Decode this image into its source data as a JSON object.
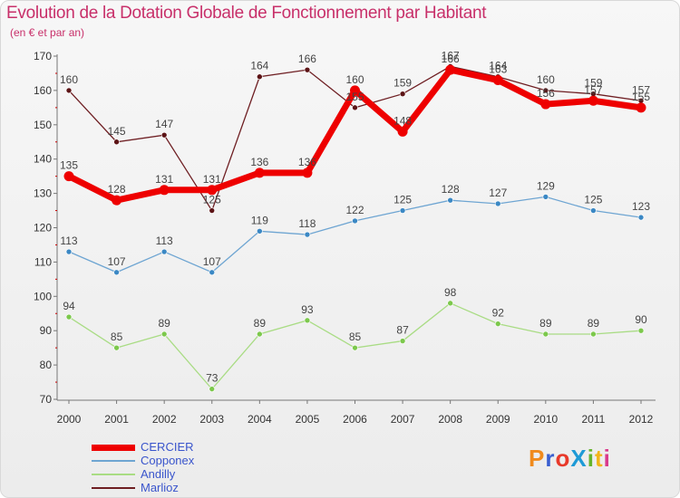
{
  "header": {
    "title": "Evolution de la Dotation Globale de Fonctionnement par Habitant",
    "subtitle": "(en € et par an)"
  },
  "logo": {
    "text": "ProXiti"
  },
  "colors": {
    "title": "#c8306a",
    "legend_text": "#3a55cc"
  },
  "chart_data": {
    "type": "line",
    "title": "Evolution de la Dotation Globale de Fonctionnement par Habitant",
    "subtitle": "(en € et par an)",
    "x": [
      "2000",
      "2001",
      "2002",
      "2003",
      "2004",
      "2005",
      "2006",
      "2007",
      "2008",
      "2009",
      "2010",
      "2011",
      "2012"
    ],
    "ylim": [
      70,
      170
    ],
    "yticks": [
      "70",
      "80",
      "90",
      "100",
      "110",
      "120",
      "130",
      "140",
      "150",
      "160",
      "170"
    ],
    "xlabel": "",
    "ylabel": "",
    "grid": false,
    "legend_position": "bottom-left",
    "series": [
      {
        "name": "Marlioz",
        "color": "#6e1e22",
        "marker": "#5c1416",
        "width": 1.3,
        "values": [
          160,
          145,
          147,
          125,
          164,
          166,
          155,
          159,
          167,
          164,
          160,
          159,
          157
        ],
        "labels": [
          "160",
          "145",
          "147",
          "125",
          "164",
          "166",
          "155",
          "159",
          "167",
          "164",
          "160",
          "159",
          "157"
        ]
      },
      {
        "name": "Copponex",
        "color": "#6ea5d2",
        "marker": "#3b88c4",
        "width": 1.3,
        "values": [
          113,
          107,
          113,
          107,
          119,
          118,
          122,
          125,
          128,
          127,
          129,
          125,
          123
        ],
        "labels": [
          "113",
          "107",
          "113",
          "107",
          "119",
          "118",
          "122",
          "125",
          "128",
          "127",
          "129",
          "125",
          "123"
        ]
      },
      {
        "name": "Andilly",
        "color": "#a9dc84",
        "marker": "#7cc84c",
        "width": 1.3,
        "values": [
          94,
          85,
          89,
          73,
          89,
          93,
          85,
          87,
          98,
          92,
          89,
          89,
          90
        ],
        "labels": [
          "94",
          "85",
          "89",
          "73",
          "89",
          "93",
          "85",
          "87",
          "98",
          "92",
          "89",
          "89",
          "90"
        ]
      },
      {
        "name": "CERCIER",
        "color": "#ee0000",
        "marker": "#ee0000",
        "width": 7,
        "values": [
          135,
          128,
          131,
          131,
          136,
          136,
          160,
          148,
          166,
          163,
          156,
          157,
          155
        ],
        "labels": [
          "135",
          "128",
          "131",
          "131",
          "136",
          "136",
          "160",
          "148",
          "166",
          "163",
          "156",
          "157",
          "155"
        ]
      }
    ]
  },
  "legend": {
    "items": [
      {
        "label": "CERCIER",
        "color": "#ee0000"
      },
      {
        "label": "Copponex",
        "color": "#6ea5d2"
      },
      {
        "label": "Andilly",
        "color": "#a9dc84"
      },
      {
        "label": "Marlioz",
        "color": "#6e1e22"
      }
    ]
  }
}
